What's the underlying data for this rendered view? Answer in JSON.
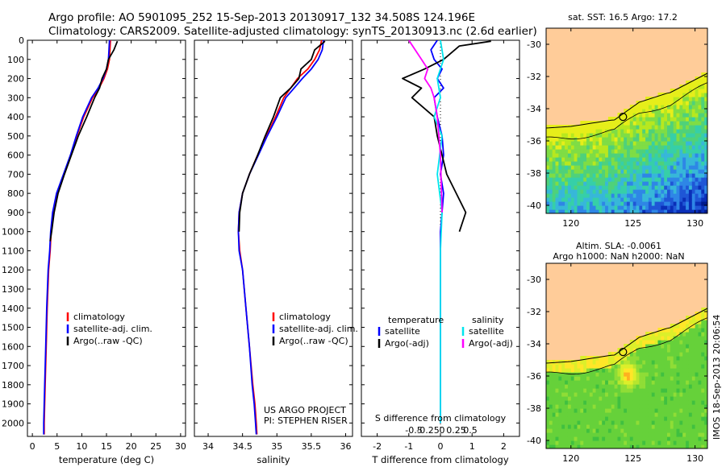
{
  "header": {
    "line1": "Argo profile: AO 5901095_252 15-Sep-2013 20130917_132 34.508S 124.196E",
    "line2": "Climatology: CARS2009. Satellite-adjusted climatology: synTS_20130913.nc (2.6d earlier)"
  },
  "side_label": "IMOS 18-Sep-2013 20:06:54",
  "colors": {
    "climatology": "#ff0000",
    "satellite": "#0000ff",
    "argo": "#000000",
    "salinity_satellite": "#00e5ee",
    "salinity_argo": "#ff00ff",
    "land": "#ffcc99"
  },
  "chart_data": [
    {
      "type": "line",
      "name": "temperature-profile",
      "xlabel": "temperature (deg C)",
      "xlim": [
        -1,
        31
      ],
      "ylim": [
        2070,
        0
      ],
      "xticks": [
        0,
        5,
        10,
        15,
        20,
        25,
        30
      ],
      "yticks": [
        0,
        100,
        200,
        300,
        400,
        500,
        600,
        700,
        800,
        900,
        1000,
        1100,
        1200,
        1300,
        1400,
        1500,
        1600,
        1700,
        1800,
        1900,
        2000
      ],
      "legend": [
        "climatology",
        "satellite-adj. clim.",
        "Argo(..raw -QC)"
      ],
      "series": [
        {
          "name": "climatology",
          "color": "#ff0000",
          "x": [
            15.8,
            15.7,
            15.6,
            15.2,
            14.5,
            13.5,
            12.2,
            10.4,
            9.0,
            7.8,
            6.4,
            5.0,
            4.2,
            3.8,
            3.6,
            3.3,
            3.0,
            2.8,
            2.6,
            2.5,
            2.4,
            2.4
          ],
          "y": [
            0,
            50,
            100,
            150,
            200,
            250,
            300,
            400,
            500,
            600,
            700,
            800,
            900,
            1000,
            1100,
            1200,
            1400,
            1600,
            1800,
            1900,
            2000,
            2060
          ]
        },
        {
          "name": "satellite-adj. clim.",
          "color": "#0000ff",
          "x": [
            15.6,
            15.5,
            15.4,
            15.0,
            14.3,
            13.3,
            12.0,
            10.2,
            8.9,
            7.7,
            6.3,
            4.9,
            4.1,
            3.7,
            3.5,
            3.2,
            2.9,
            2.7,
            2.5,
            2.4,
            2.3,
            2.3
          ],
          "y": [
            0,
            50,
            100,
            150,
            200,
            250,
            300,
            400,
            500,
            600,
            700,
            800,
            900,
            1000,
            1100,
            1200,
            1400,
            1600,
            1800,
            1900,
            2000,
            2060
          ]
        },
        {
          "name": "Argo(..raw -QC)",
          "color": "#000000",
          "x": [
            17.2,
            16.5,
            15.4,
            15.0,
            14.1,
            13.6,
            12.6,
            11.0,
            9.3,
            7.9,
            6.5,
            5.2,
            4.4,
            3.9,
            3.6
          ],
          "y": [
            5,
            50,
            100,
            150,
            200,
            250,
            300,
            400,
            500,
            600,
            700,
            800,
            900,
            1000,
            1050
          ]
        }
      ]
    },
    {
      "type": "line",
      "name": "salinity-profile",
      "xlabel": "salinity",
      "xlim": [
        33.8,
        36.1
      ],
      "ylim": [
        2070,
        0
      ],
      "xticks": [
        34,
        34.5,
        35,
        35.5,
        36
      ],
      "legend": [
        "climatology",
        "satellite-adj. clim.",
        "Argo(..raw -QC)"
      ],
      "annotation": [
        "US ARGO PROJECT",
        "PI: STEPHEN RISER"
      ],
      "series": [
        {
          "name": "climatology",
          "color": "#ff0000",
          "x": [
            35.65,
            35.62,
            35.55,
            35.45,
            35.3,
            35.2,
            35.1,
            34.98,
            34.85,
            34.72,
            34.6,
            34.5,
            34.45,
            34.44,
            34.46,
            34.5,
            34.55,
            34.6,
            34.65,
            34.68,
            34.7,
            34.71
          ],
          "y": [
            0,
            50,
            100,
            150,
            200,
            250,
            300,
            400,
            500,
            600,
            700,
            800,
            900,
            1000,
            1100,
            1200,
            1400,
            1600,
            1800,
            1900,
            2000,
            2060
          ]
        },
        {
          "name": "satellite-adj. clim.",
          "color": "#0000ff",
          "x": [
            35.68,
            35.66,
            35.6,
            35.5,
            35.37,
            35.25,
            35.13,
            35.0,
            34.86,
            34.73,
            34.6,
            34.5,
            34.45,
            34.44,
            34.45,
            34.5,
            34.55,
            34.6,
            34.64,
            34.67,
            34.69,
            34.7
          ],
          "y": [
            0,
            50,
            100,
            150,
            200,
            250,
            300,
            400,
            500,
            600,
            700,
            800,
            900,
            1000,
            1100,
            1200,
            1400,
            1600,
            1800,
            1900,
            2000,
            2060
          ]
        },
        {
          "name": "Argo(..raw -QC)",
          "color": "#000000",
          "x": [
            35.7,
            35.55,
            35.5,
            35.35,
            35.32,
            35.2,
            35.05,
            34.95,
            34.83,
            34.72,
            34.6,
            34.5,
            34.46,
            34.45
          ],
          "y": [
            5,
            50,
            100,
            150,
            200,
            250,
            300,
            400,
            500,
            600,
            700,
            800,
            900,
            1000
          ]
        }
      ]
    },
    {
      "type": "line",
      "name": "difference-profile",
      "xlabel": "T difference from climatology",
      "top_label": "S difference from climatology",
      "xlim": [
        -2.5,
        2.5
      ],
      "ylim": [
        2070,
        0
      ],
      "xticks": [
        -2,
        -1,
        0,
        1,
        2
      ],
      "xticklabels": [
        "-2",
        "-1",
        "0",
        "1",
        "2"
      ],
      "sticks": [
        -0.5,
        -0.25,
        0,
        0.25,
        0.5
      ],
      "sticklabels": [
        "-0.5",
        "-0.25",
        "0",
        "0.25",
        "0.5"
      ],
      "legend_t_title": "temperature",
      "legend_s_title": "salinity",
      "legend": [
        "satellite",
        "Argo(-adj)",
        "satellite",
        "Argo(-adj)"
      ],
      "series": [
        {
          "name": "satellite",
          "color": "#0000ff",
          "x": [
            -0.1,
            -0.3,
            -0.2,
            0.05,
            -0.1,
            0.1,
            -0.2,
            -0.1,
            0.05,
            0.1,
            0.0,
            0.1,
            0.0,
            0.0,
            0.0,
            0.0
          ],
          "y": [
            0,
            50,
            100,
            150,
            200,
            250,
            300,
            400,
            500,
            600,
            700,
            800,
            1000,
            1200,
            1600,
            2000
          ]
        },
        {
          "name": "Argo(-adj)",
          "color": "#000000",
          "x": [
            1.6,
            0.6,
            0.1,
            -0.5,
            -1.2,
            -0.6,
            -0.9,
            -0.2,
            -0.1,
            0.05,
            0.2,
            0.5,
            0.8,
            0.6
          ],
          "y": [
            5,
            30,
            100,
            150,
            200,
            250,
            300,
            400,
            500,
            600,
            700,
            800,
            900,
            1000
          ]
        },
        {
          "name": "satellite",
          "color": "#00e5ee",
          "x": [
            0.0,
            0.1,
            -0.1,
            0.0,
            -0.2,
            0.05,
            -0.1,
            0.05,
            0.0,
            0.0,
            0.0,
            0.0
          ],
          "y": [
            0,
            100,
            200,
            300,
            400,
            500,
            700,
            900,
            1100,
            1400,
            1700,
            2000
          ]
        },
        {
          "name": "Argo(-adj)",
          "color": "#ff00ff",
          "x": [
            -1.0,
            -0.6,
            -0.4,
            -0.5,
            -0.3,
            -0.2,
            -0.1,
            0.0,
            0.05
          ],
          "y": [
            0,
            100,
            150,
            200,
            250,
            300,
            400,
            600,
            900
          ]
        }
      ]
    },
    {
      "type": "heatmap",
      "name": "sst-map",
      "title": "sat. SST: 16.5  Argo: 17.2",
      "xlim": [
        118,
        131
      ],
      "ylim": [
        -40.5,
        -29
      ],
      "xticks": [
        120,
        125,
        130
      ],
      "yticks": [
        -30,
        -32,
        -34,
        -36,
        -38,
        -40
      ],
      "argo_position": [
        124.196,
        -34.508
      ]
    },
    {
      "type": "heatmap",
      "name": "sla-map",
      "title": "Altim. SLA: -0.0061",
      "subtitle": "Argo h1000: NaN  h2000: NaN",
      "xlim": [
        118,
        131
      ],
      "ylim": [
        -40.5,
        -29
      ],
      "xticks": [
        120,
        125,
        130
      ],
      "yticks": [
        -30,
        -32,
        -34,
        -36,
        -38,
        -40
      ],
      "argo_position": [
        124.196,
        -34.508
      ]
    }
  ]
}
